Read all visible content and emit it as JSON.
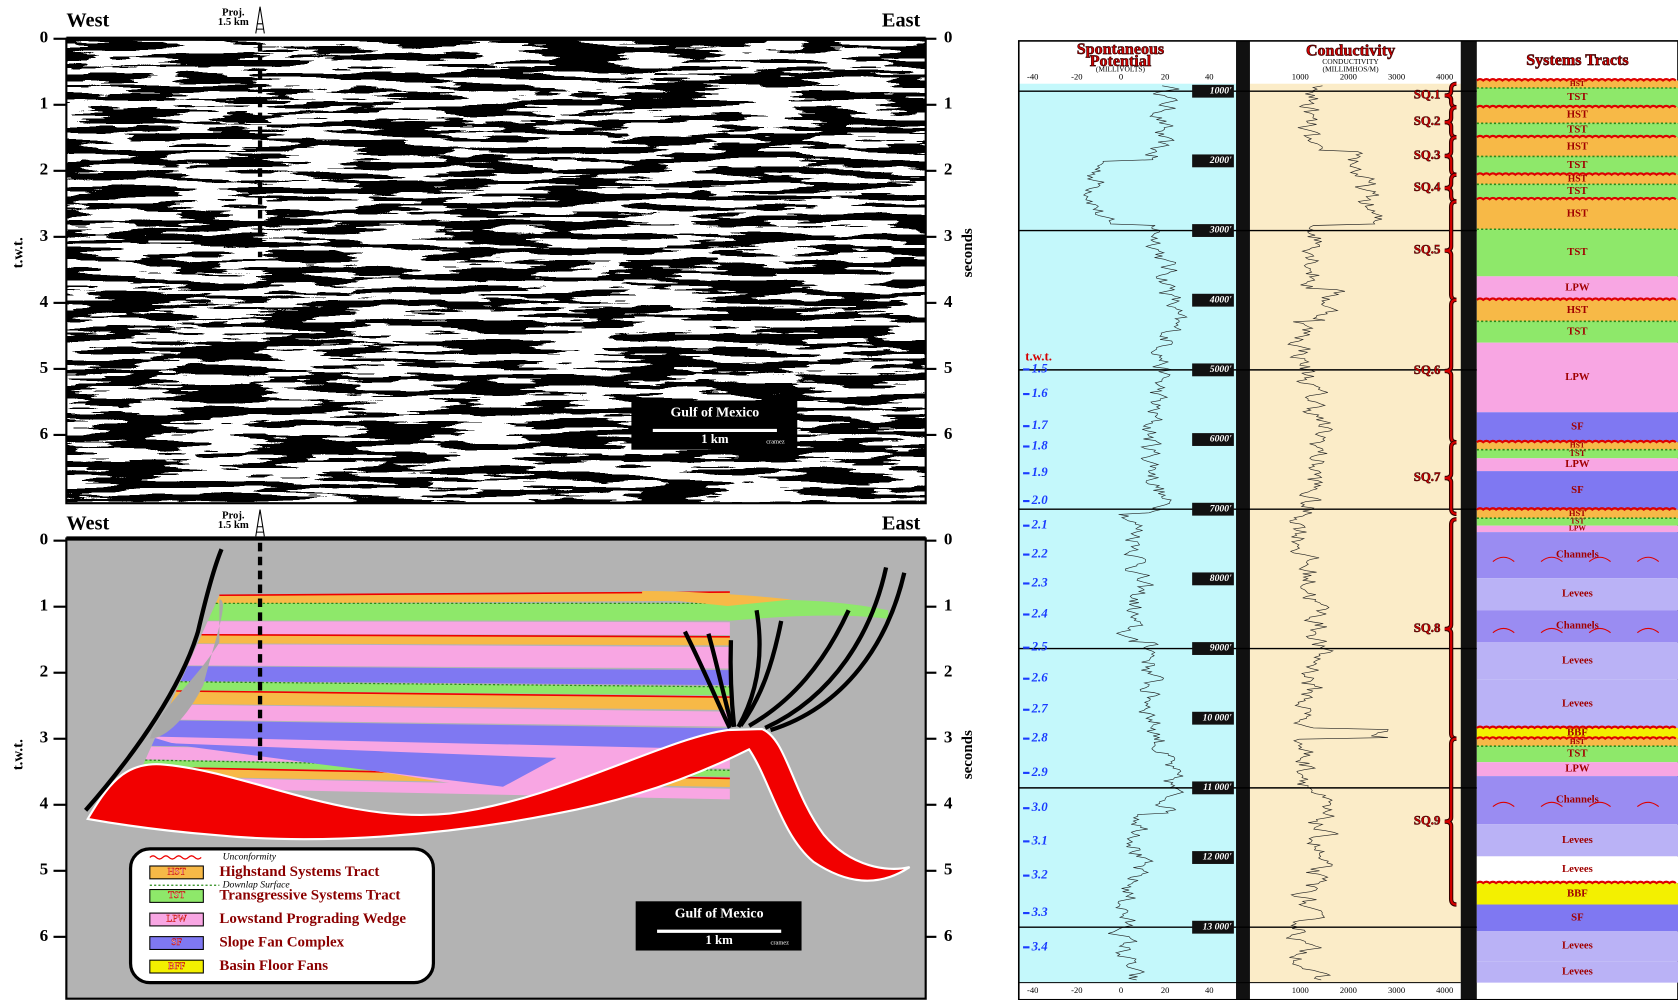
{
  "seismic": {
    "west": "West",
    "east": "East",
    "proj": "Proj.",
    "proj_dist": "1.5 km",
    "y_left_label": "t.w.t.",
    "y_right_label": "seconds",
    "ticks": [
      0,
      1,
      2,
      3,
      4,
      5,
      6
    ],
    "scale_title": "Gulf of Mexico",
    "scale_length": "1 km",
    "credit": "cramez"
  },
  "interpretation": {
    "west": "West",
    "east": "East",
    "proj": "Proj.",
    "proj_dist": "1.5 km",
    "y_left_label": "t.w.t.",
    "y_right_label": "seconds",
    "ticks": [
      0,
      1,
      2,
      3,
      4,
      5,
      6
    ],
    "scale_title": "Gulf of Mexico",
    "scale_length": "1 km",
    "credit": "cramez",
    "legend": {
      "unconformity": "Unconformity",
      "downlap": "Downlap Surface",
      "items": [
        {
          "abbr": "HST",
          "label": "Highstand Systems Tract"
        },
        {
          "abbr": "TST",
          "label": "Transgressive Systems Tract"
        },
        {
          "abbr": "LPW",
          "label": "Lowstand Prograding Wedge"
        },
        {
          "abbr": "SF",
          "label": "Slope Fan Complex"
        },
        {
          "abbr": "BFF",
          "label": "Basin Floor Fans"
        }
      ]
    }
  },
  "well_log": {
    "sp": {
      "title_lines": [
        "Spontaneous",
        "Potential"
      ],
      "unit": "(MILLIVOLTS)",
      "scale": [
        "-40",
        "-20",
        "0",
        "20",
        "40"
      ]
    },
    "conductivity": {
      "title": "Conductivity",
      "subtitle": "CONDUCTIVITY",
      "unit": "(MILLIMHOS/M)",
      "scale": [
        "1000",
        "2000",
        "3000",
        "4000"
      ]
    },
    "systems_tracts": {
      "title": "Systems Tracts",
      "bands": [
        "HST",
        "TST",
        "HST",
        "TST",
        "HST",
        "TST",
        "HST",
        "TST",
        "HST",
        "TST",
        "LPW",
        "HST",
        "TST",
        "LPW",
        "SF",
        "HST",
        "TST",
        "LPW",
        "SF",
        "HST",
        "TST",
        "LPW",
        "Channels",
        "Levees",
        "Channels",
        "Levees",
        "Levees",
        "BBF",
        "HST",
        "TST",
        "LPW",
        "Channels",
        "Levees",
        "Levees",
        "BBF",
        "SF",
        "Levees",
        "Levees"
      ]
    },
    "depths": [
      "1000'",
      "2000'",
      "3000'",
      "4000'",
      "5000'",
      "6000'",
      "7000'",
      "8000'",
      "9000'",
      "10 000'",
      "11 000'",
      "12 000'",
      "13 000'"
    ],
    "twt_label": "t.w.t.",
    "twt": [
      "1.5",
      "1.6",
      "1.7",
      "1.8",
      "1.9",
      "2.0",
      "2.1",
      "2.2",
      "2.3",
      "2.4",
      "2.5",
      "2.6",
      "2.7",
      "2.8",
      "2.9",
      "3.0",
      "3.1",
      "3.2",
      "3.3",
      "3.4"
    ],
    "sequences": [
      "SQ.1",
      "SQ.2",
      "SQ.3",
      "SQ.4",
      "SQ.5",
      "SQ.6",
      "SQ.7",
      "SQ.8",
      "SQ.9"
    ]
  }
}
